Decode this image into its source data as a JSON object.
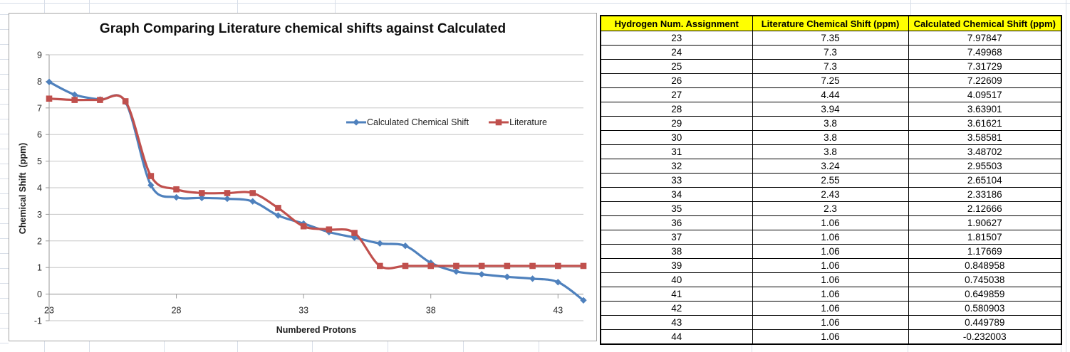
{
  "chart": {
    "title": "Graph Comparing Literature chemical shifts against Calculated",
    "x_axis_title": "Numbered Protons",
    "y_axis_title": "Chemical Shift  (ppm)",
    "legend": [
      {
        "label": "Calculated Chemical Shift"
      },
      {
        "label": "Literature"
      }
    ]
  },
  "chart_data": {
    "type": "line",
    "title": "Graph Comparing Literature chemical shifts against Calculated",
    "xlabel": "Numbered Protons",
    "ylabel": "Chemical Shift (ppm)",
    "categories": [
      23,
      24,
      25,
      26,
      27,
      28,
      29,
      30,
      31,
      32,
      33,
      34,
      35,
      36,
      37,
      38,
      39,
      40,
      41,
      42,
      43,
      44
    ],
    "series": [
      {
        "name": "Calculated Chemical Shift",
        "color": "#4F81BD",
        "marker": "diamond",
        "values": [
          7.97847,
          7.49968,
          7.31729,
          7.22609,
          4.09517,
          3.63901,
          3.61621,
          3.58581,
          3.48702,
          2.95503,
          2.65104,
          2.33186,
          2.12666,
          1.90627,
          1.81507,
          1.17669,
          0.848958,
          0.745038,
          0.649859,
          0.580903,
          0.449789,
          -0.232003
        ]
      },
      {
        "name": "Literature",
        "color": "#C0504D",
        "marker": "square",
        "values": [
          7.35,
          7.3,
          7.3,
          7.25,
          4.44,
          3.94,
          3.8,
          3.8,
          3.8,
          3.24,
          2.55,
          2.43,
          2.3,
          1.06,
          1.06,
          1.06,
          1.06,
          1.06,
          1.06,
          1.06,
          1.06,
          1.06
        ]
      }
    ],
    "ylim": [
      -1,
      9
    ],
    "ytick_step": 1,
    "xticks_shown": [
      23,
      28,
      33,
      38,
      43
    ],
    "grid": true,
    "smooth": true,
    "legend_position": "inside-plot-upper-right",
    "colors": {
      "grid": "#c6c6c6",
      "axis": "#9a9a9a"
    }
  },
  "table": {
    "headers": [
      "Hydrogen Num. Assignment",
      "Literature Chemical Shift (ppm)",
      "Calculated Chemical Shift (ppm)"
    ],
    "header_bg": "#FFFF00",
    "rows": [
      [
        "23",
        "7.35",
        "7.97847"
      ],
      [
        "24",
        "7.3",
        "7.49968"
      ],
      [
        "25",
        "7.3",
        "7.31729"
      ],
      [
        "26",
        "7.25",
        "7.22609"
      ],
      [
        "27",
        "4.44",
        "4.09517"
      ],
      [
        "28",
        "3.94",
        "3.63901"
      ],
      [
        "29",
        "3.8",
        "3.61621"
      ],
      [
        "30",
        "3.8",
        "3.58581"
      ],
      [
        "31",
        "3.8",
        "3.48702"
      ],
      [
        "32",
        "3.24",
        "2.95503"
      ],
      [
        "33",
        "2.55",
        "2.65104"
      ],
      [
        "34",
        "2.43",
        "2.33186"
      ],
      [
        "35",
        "2.3",
        "2.12666"
      ],
      [
        "36",
        "1.06",
        "1.90627"
      ],
      [
        "37",
        "1.06",
        "1.81507"
      ],
      [
        "38",
        "1.06",
        "1.17669"
      ],
      [
        "39",
        "1.06",
        "0.848958"
      ],
      [
        "40",
        "1.06",
        "0.745038"
      ],
      [
        "41",
        "1.06",
        "0.649859"
      ],
      [
        "42",
        "1.06",
        "0.580903"
      ],
      [
        "43",
        "1.06",
        "0.449789"
      ],
      [
        "44",
        "1.06",
        "-0.232003"
      ]
    ]
  }
}
